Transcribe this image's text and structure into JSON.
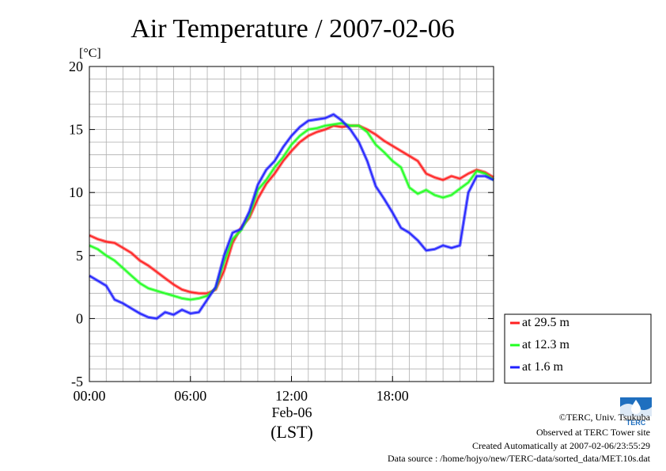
{
  "chart_data": {
    "type": "line",
    "title": "Air Temperature / 2007-02-06",
    "ylabel": "[°C]",
    "xlabel_date": "Feb-06",
    "xlabel_unit": "(LST)",
    "ylim": [
      -5,
      20
    ],
    "xlim_hours": [
      0,
      24
    ],
    "yticks": [
      -5,
      0,
      5,
      10,
      15,
      20
    ],
    "xticks": [
      {
        "hour": 0,
        "label": "00:00"
      },
      {
        "hour": 6,
        "label": "06:00"
      },
      {
        "hour": 12,
        "label": "12:00"
      },
      {
        "hour": 18,
        "label": "18:00"
      }
    ],
    "grid": true,
    "legend_position": "right",
    "series": [
      {
        "name": "at 29.5 m",
        "color": "#ff2020",
        "x": [
          0,
          0.5,
          1,
          1.5,
          2,
          2.5,
          3,
          3.5,
          4,
          4.5,
          5,
          5.5,
          6,
          6.5,
          7,
          7.5,
          8,
          8.5,
          9,
          9.5,
          10,
          10.5,
          11,
          11.5,
          12,
          12.5,
          13,
          13.5,
          14,
          14.5,
          15,
          15.5,
          16,
          16.5,
          17,
          17.5,
          18,
          18.5,
          19,
          19.5,
          20,
          20.5,
          21,
          21.5,
          22,
          22.5,
          23,
          23.5,
          24
        ],
        "y": [
          6.6,
          6.3,
          6.1,
          6.0,
          5.6,
          5.2,
          4.6,
          4.2,
          3.7,
          3.2,
          2.7,
          2.3,
          2.1,
          2.0,
          2.0,
          2.3,
          3.8,
          6.0,
          7.2,
          8.0,
          9.5,
          10.7,
          11.5,
          12.5,
          13.3,
          14.0,
          14.5,
          14.8,
          15.0,
          15.3,
          15.2,
          15.3,
          15.3,
          15.0,
          14.6,
          14.1,
          13.7,
          13.3,
          12.9,
          12.5,
          11.5,
          11.2,
          11.0,
          11.3,
          11.1,
          11.5,
          11.8,
          11.6,
          11.2
        ]
      },
      {
        "name": "at 12.3 m",
        "color": "#20ff20",
        "x": [
          0,
          0.5,
          1,
          1.5,
          2,
          2.5,
          3,
          3.5,
          4,
          4.5,
          5,
          5.5,
          6,
          6.5,
          7,
          7.5,
          8,
          8.5,
          9,
          9.5,
          10,
          10.5,
          11,
          11.5,
          12,
          12.5,
          13,
          13.5,
          14,
          14.5,
          15,
          15.5,
          16,
          16.5,
          17,
          17.5,
          18,
          18.5,
          19,
          19.5,
          20,
          20.5,
          21,
          21.5,
          22,
          22.5,
          23,
          23.5,
          24
        ],
        "y": [
          5.8,
          5.5,
          5.0,
          4.6,
          4.0,
          3.4,
          2.8,
          2.4,
          2.2,
          2.0,
          1.8,
          1.6,
          1.5,
          1.6,
          1.8,
          2.4,
          4.5,
          6.3,
          7.0,
          8.2,
          10.2,
          11.0,
          12.0,
          12.8,
          13.8,
          14.5,
          15.0,
          15.1,
          15.3,
          15.4,
          15.5,
          15.3,
          15.3,
          14.8,
          13.8,
          13.2,
          12.5,
          12.0,
          10.4,
          9.9,
          10.2,
          9.8,
          9.6,
          9.8,
          10.3,
          10.8,
          11.7,
          11.5,
          11.0
        ]
      },
      {
        "name": "at 1.6 m",
        "color": "#2020ff",
        "x": [
          0,
          0.5,
          1,
          1.5,
          2,
          2.5,
          3,
          3.5,
          4,
          4.5,
          5,
          5.5,
          6,
          6.5,
          7,
          7.5,
          8,
          8.5,
          9,
          9.5,
          10,
          10.5,
          11,
          11.5,
          12,
          12.5,
          13,
          13.5,
          14,
          14.5,
          15,
          15.5,
          16,
          16.5,
          17,
          17.5,
          18,
          18.5,
          19,
          19.5,
          20,
          20.5,
          21,
          21.5,
          22,
          22.5,
          23,
          23.5,
          24
        ],
        "y": [
          3.4,
          3.0,
          2.6,
          1.5,
          1.2,
          0.8,
          0.4,
          0.1,
          0.0,
          0.5,
          0.3,
          0.7,
          0.4,
          0.5,
          1.5,
          2.5,
          5.0,
          6.8,
          7.1,
          8.5,
          10.6,
          11.8,
          12.5,
          13.6,
          14.5,
          15.2,
          15.7,
          15.8,
          15.9,
          16.2,
          15.7,
          15.0,
          14.0,
          12.5,
          10.5,
          9.5,
          8.4,
          7.2,
          6.8,
          6.2,
          5.4,
          5.5,
          5.8,
          5.6,
          5.8,
          10.0,
          11.3,
          11.3,
          11.0
        ]
      }
    ]
  },
  "footer": {
    "logo_text": "TERC",
    "copyright": "©TERC, Univ. Tsukuba",
    "observed": "Observed at TERC Tower site",
    "created": "Created Automatically at 2007-02-06/23:55:29",
    "source": "Data source : /home/hojyo/new/TERC-data/sorted_data/MET.10s.dat"
  }
}
